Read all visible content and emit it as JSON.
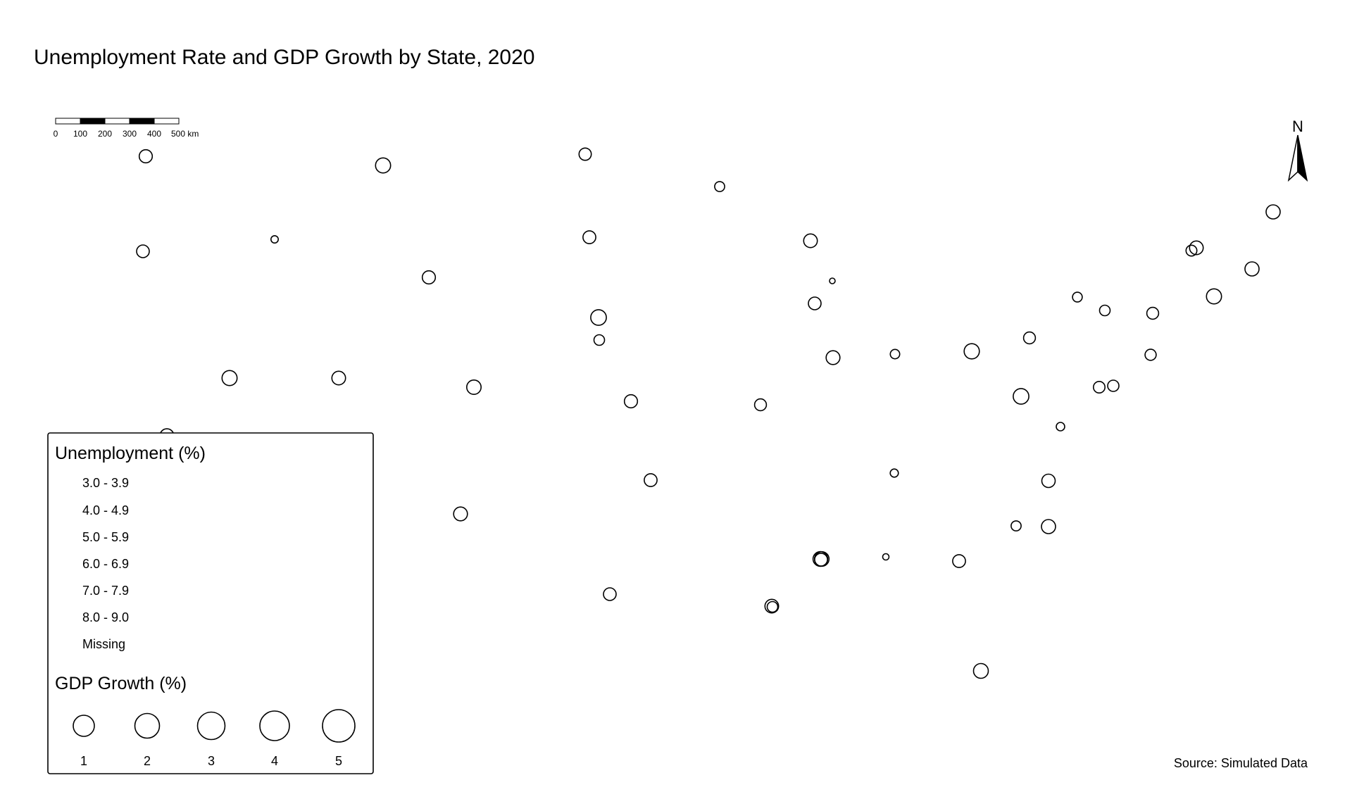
{
  "title": "Unemployment Rate and GDP Growth by State, 2020",
  "scale_bar": {
    "tick_labels": [
      "0",
      "100",
      "200",
      "300",
      "400",
      "500 km"
    ]
  },
  "north_arrow": {
    "label": "N"
  },
  "legend": {
    "unemployment_title": "Unemployment (%)",
    "unemployment_classes": [
      "3.0 - 3.9",
      "4.0 - 4.9",
      "5.0 - 5.9",
      "6.0 - 6.9",
      "7.0 - 7.9",
      "8.0 - 9.0",
      "Missing"
    ],
    "gdp_title": "GDP Growth (%)",
    "gdp_sizes": [
      {
        "label": "1",
        "value": 1
      },
      {
        "label": "2",
        "value": 2
      },
      {
        "label": "3",
        "value": 3
      },
      {
        "label": "4",
        "value": 4
      },
      {
        "label": "5",
        "value": 5
      }
    ]
  },
  "source": "Source: Simulated Data",
  "colors": {
    "stroke": "#000000",
    "background": "#ffffff"
  },
  "chart_data": {
    "type": "proportional-symbol-map",
    "symbol_variable": "GDP Growth (%)",
    "fill_variable": "Unemployment (%)",
    "states": [
      {
        "gdp": 2.6
      },
      {
        "gdp": 3.7
      },
      {
        "gdp": 2.2
      },
      {
        "gdp": 1.3
      },
      {
        "gdp": 2.4
      },
      {
        "gdp": 0.5
      },
      {
        "gdp": 2.5
      },
      {
        "gdp": 2.9
      },
      {
        "gdp": 2.4
      },
      {
        "gdp": 2.6
      },
      {
        "gdp": 4.1
      },
      {
        "gdp": 0.2
      },
      {
        "gdp": 3.2
      },
      {
        "gdp": 2.9
      },
      {
        "gdp": 1.6
      },
      {
        "gdp": 3.2
      },
      {
        "gdp": 3.7
      },
      {
        "gdp": 3.3
      },
      {
        "gdp": 2.9
      },
      {
        "gdp": 1.5
      },
      {
        "gdp": 3.0
      },
      {
        "gdp": 3.8
      },
      {
        "gdp": 2.0
      },
      {
        "gdp": 1.2
      },
      {
        "gdp": 1.5
      },
      {
        "gdp": 1.7
      },
      {
        "gdp": 2.6
      },
      {
        "gdp": 2.0
      },
      {
        "gdp": 4.1
      },
      {
        "gdp": 0.8
      },
      {
        "gdp": 2.0
      },
      {
        "gdp": 3.7
      },
      {
        "gdp": 1.9
      },
      {
        "gdp": 2.8
      },
      {
        "gdp": 1.1
      },
      {
        "gdp": 2.5
      },
      {
        "gdp": 0.7
      },
      {
        "gdp": 3.2
      },
      {
        "gdp": 1.8
      },
      {
        "gdp": 3.1
      },
      {
        "gdp": 3.0
      },
      {
        "gdp": 0.3
      },
      {
        "gdp": 2.5
      },
      {
        "gdp": 2.5
      },
      {
        "gdp": 1.3
      },
      {
        "gdp": 2.9
      },
      {
        "gdp": 3.4
      },
      {
        "gdp": 3.6
      },
      {
        "gdp": 2.4
      },
      {
        "gdp": 1.5
      },
      {
        "gdp": 3.5
      }
    ]
  }
}
